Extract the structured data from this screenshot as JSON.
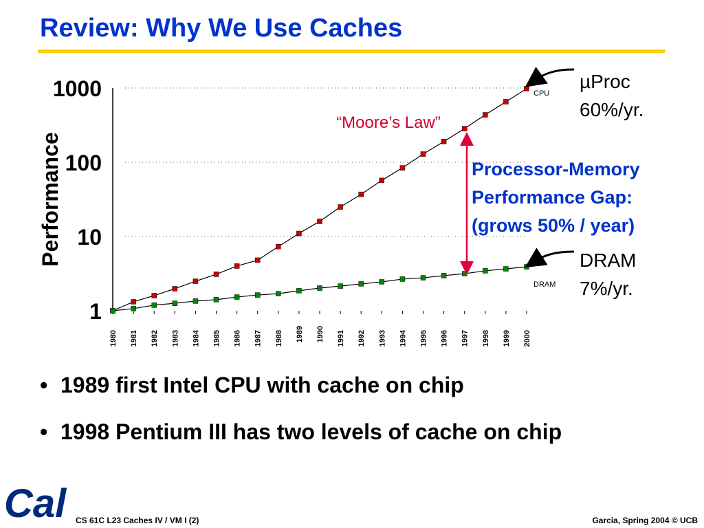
{
  "slide": {
    "title": "Review: Why We Use Caches",
    "bullets": [
      "1989 first Intel CPU with cache on chip",
      "1998 Pentium III has two levels of cache on chip"
    ],
    "footer_left": "CS 61C L23 Caches IV / VM I (2)",
    "footer_right": "Garcia, Spring 2004 © UCB"
  },
  "chart_data": {
    "type": "line",
    "y_label": "Performance",
    "log_scale": true,
    "categories": [
      "1980",
      "1981",
      "1982",
      "1983",
      "1984",
      "1985",
      "1986",
      "1987",
      "1988",
      "1989",
      "1990",
      "1991",
      "1992",
      "1993",
      "1994",
      "1995",
      "1996",
      "1997",
      "1998",
      "1999",
      "2000"
    ],
    "series": [
      {
        "name": "CPU",
        "color": "#cc0000",
        "values": [
          1,
          1.32,
          1.6,
          1.98,
          2.5,
          3.1,
          4.0,
          4.8,
          7.3,
          11,
          16,
          25,
          37,
          57,
          84,
          129,
          190,
          284,
          435,
          653,
          980
        ]
      },
      {
        "name": "DRAM",
        "color": "#008800",
        "values": [
          1,
          1.07,
          1.19,
          1.26,
          1.35,
          1.41,
          1.53,
          1.63,
          1.7,
          1.86,
          2.02,
          2.15,
          2.3,
          2.45,
          2.67,
          2.78,
          2.97,
          3.16,
          3.45,
          3.67,
          3.91
        ]
      }
    ],
    "ylim": [
      1,
      1000
    ],
    "yticks": [
      1,
      10,
      100,
      1000
    ],
    "grid": true,
    "annotations": [
      {
        "lines": [
          "“Moore’s Law”"
        ],
        "color": "#cc0033"
      },
      {
        "lines": [
          "Processor-Memory",
          "Performance Gap:",
          "(grows 50% / year)"
        ],
        "color": "#0033cc"
      },
      {
        "lines": [
          "µProc",
          "60%/yr."
        ],
        "color": "#000000"
      },
      {
        "lines": [
          "DRAM",
          "7%/yr."
        ],
        "color": "#000000"
      }
    ]
  }
}
